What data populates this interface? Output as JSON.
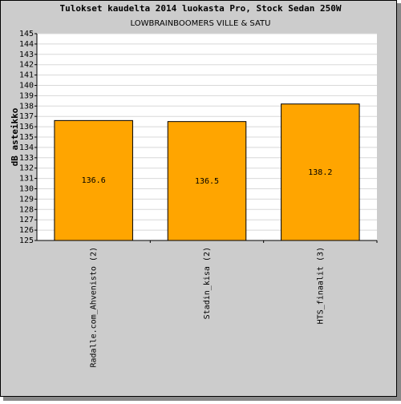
{
  "chart_data": {
    "type": "bar",
    "title": "Tulokset kaudelta 2014 luokasta Pro, Stock Sedan 250W",
    "subtitle": "LOWBRAINBOOMERS VILLE & SATU",
    "y_label": "dB asteikko",
    "categories": [
      "Radalle.com_Ahvenisto (2)",
      "Stadin_kisa (2)",
      "HTS_finaalit (3)"
    ],
    "values": [
      136.6,
      136.5,
      138.2
    ],
    "color": "#ffa500",
    "ylim": [
      125,
      145
    ],
    "yticks": [
      125,
      126,
      127,
      128,
      129,
      130,
      131,
      132,
      133,
      134,
      135,
      136,
      137,
      138,
      139,
      140,
      141,
      142,
      143,
      144,
      145
    ],
    "grid": true
  }
}
